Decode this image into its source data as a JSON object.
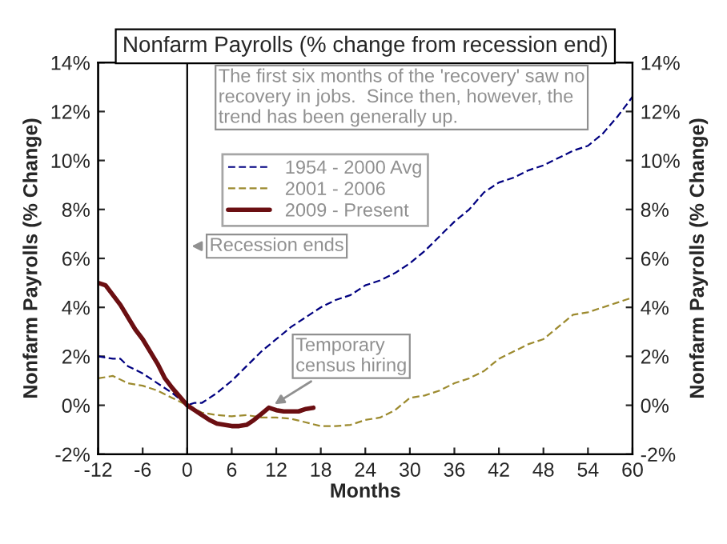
{
  "chart_data": {
    "type": "line",
    "title": "Nonfarm Payrolls (% change from recession end)",
    "xlabel": "Months",
    "ylabel": "Nonfarm Payrolls (% Change)",
    "y2label": "Nonfarm Payrolls (% Change)",
    "xlim": [
      -12,
      60
    ],
    "xticks": [
      -12,
      -6,
      0,
      6,
      12,
      18,
      24,
      30,
      36,
      42,
      48,
      54,
      60
    ],
    "ylim": [
      -2,
      14
    ],
    "yticks": [
      {
        "value": -2,
        "label": "-2%"
      },
      {
        "value": 0,
        "label": "0%"
      },
      {
        "value": 2,
        "label": "2%"
      },
      {
        "value": 4,
        "label": "4%"
      },
      {
        "value": 6,
        "label": "6%"
      },
      {
        "value": 8,
        "label": "8%"
      },
      {
        "value": 10,
        "label": "10%"
      },
      {
        "value": 12,
        "label": "12%"
      },
      {
        "value": 14,
        "label": "14%"
      }
    ],
    "y2lim": [
      -2,
      14
    ],
    "y2ticks": [
      {
        "value": -2,
        "label": "-2%"
      },
      {
        "value": 0,
        "label": "0%"
      },
      {
        "value": 2,
        "label": "2%"
      },
      {
        "value": 4,
        "label": "4%"
      },
      {
        "value": 6,
        "label": "6%"
      },
      {
        "value": 8,
        "label": "8%"
      },
      {
        "value": 10,
        "label": "10%"
      },
      {
        "value": 12,
        "label": "12%"
      },
      {
        "value": 14,
        "label": "14%"
      }
    ],
    "grid": false,
    "legend": "top left",
    "series": [
      {
        "name": "1954 - 2000 Avg",
        "color": "#000080",
        "line_style": "dashed",
        "x": [
          -12,
          -10,
          -9,
          -8,
          -6,
          -4,
          -2,
          0,
          1,
          2,
          4,
          6,
          8,
          10,
          12,
          14,
          16,
          18,
          20,
          22,
          24,
          26,
          28,
          30,
          32,
          34,
          36,
          38,
          40,
          42,
          44,
          46,
          48,
          50,
          52,
          54,
          56,
          58,
          60
        ],
        "values": [
          2.0,
          1.9,
          1.9,
          1.6,
          1.3,
          0.9,
          0.5,
          0,
          0.1,
          0.1,
          0.5,
          1.0,
          1.6,
          2.2,
          2.7,
          3.2,
          3.6,
          4.0,
          4.3,
          4.5,
          4.9,
          5.1,
          5.4,
          5.8,
          6.3,
          6.9,
          7.5,
          8.0,
          8.7,
          9.1,
          9.3,
          9.6,
          9.8,
          10.1,
          10.4,
          10.6,
          11.1,
          11.8,
          12.6
        ]
      },
      {
        "name": "2001 - 2006",
        "color": "#9c8a2e",
        "line_style": "dashed",
        "x": [
          -12,
          -10,
          -8,
          -6,
          -4,
          -2,
          0,
          2,
          4,
          6,
          8,
          10,
          12,
          14,
          16,
          18,
          20,
          22,
          24,
          26,
          28,
          30,
          32,
          34,
          36,
          38,
          40,
          42,
          44,
          46,
          48,
          50,
          52,
          54,
          56,
          58,
          60
        ],
        "values": [
          1.1,
          1.2,
          0.9,
          0.8,
          0.6,
          0.3,
          0,
          -0.3,
          -0.4,
          -0.45,
          -0.4,
          -0.5,
          -0.5,
          -0.55,
          -0.7,
          -0.85,
          -0.85,
          -0.8,
          -0.6,
          -0.5,
          -0.2,
          0.3,
          0.4,
          0.6,
          0.9,
          1.1,
          1.4,
          1.9,
          2.2,
          2.5,
          2.7,
          3.2,
          3.7,
          3.8,
          4.0,
          4.2,
          4.4
        ]
      },
      {
        "name": "2009 - Present",
        "color": "#6b0f12",
        "line_style": "solid",
        "x": [
          -12,
          -11,
          -9,
          -7,
          -6,
          -4,
          -3,
          -2,
          -1,
          0,
          1,
          2,
          3,
          4,
          5,
          6,
          7,
          8,
          9,
          10,
          11,
          12,
          13,
          14,
          15,
          16,
          17
        ],
        "values": [
          5.0,
          4.9,
          4.1,
          3.1,
          2.7,
          1.7,
          1.1,
          0.7,
          0.35,
          0,
          -0.2,
          -0.4,
          -0.6,
          -0.75,
          -0.8,
          -0.85,
          -0.85,
          -0.8,
          -0.6,
          -0.35,
          -0.1,
          -0.2,
          -0.25,
          -0.25,
          -0.25,
          -0.15,
          -0.1
        ]
      }
    ],
    "ref_lines": [
      {
        "axis": "x",
        "value": 0,
        "label": "Recession ends",
        "color": "#000000"
      }
    ],
    "annotations": [
      "The first six months of the 'recovery' saw no recovery in jobs.  Since then, however, the trend has been generally up.",
      {
        "text": "Temporary census hiring",
        "x": 11,
        "y": -0.1
      }
    ]
  }
}
